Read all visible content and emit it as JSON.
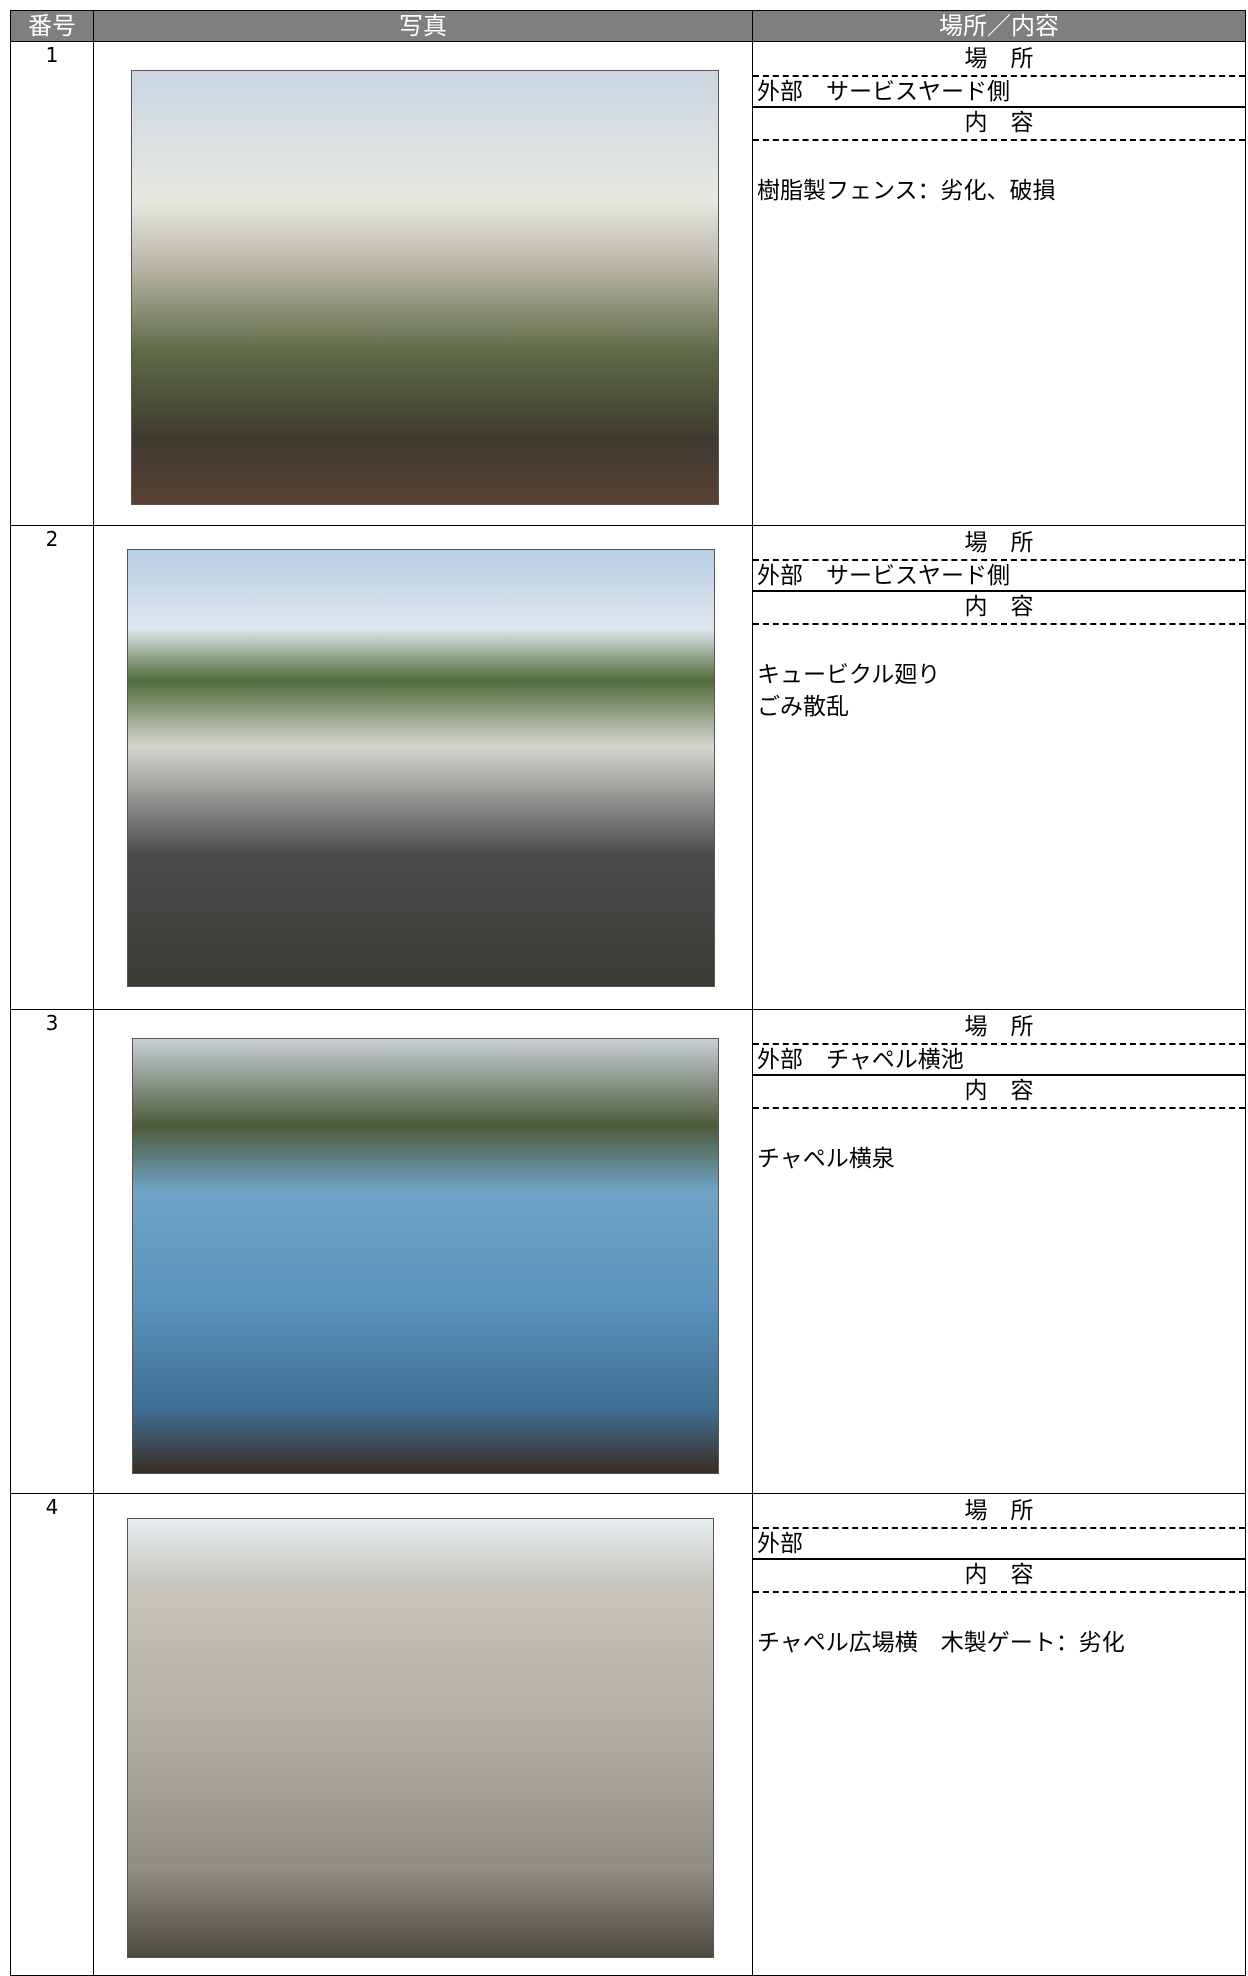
{
  "header": {
    "number": "番号",
    "photo": "写真",
    "location_content": "場所／内容"
  },
  "rows": [
    {
      "number": "1",
      "location_label": "場　所",
      "location": "外部　サービスヤード側",
      "content_label": "内　容",
      "content": "樹脂製フェンス：劣化、破損"
    },
    {
      "number": "2",
      "location_label": "場　所",
      "location": "外部　サービスヤード側",
      "content_label": "内　容",
      "content": "キュービクル廻り\nごみ散乱"
    },
    {
      "number": "3",
      "location_label": "場　所",
      "location": "外部　チャペル横池",
      "content_label": "内　容",
      "content": "チャペル横泉"
    },
    {
      "number": "4",
      "location_label": "場　所",
      "location": "外部",
      "content_label": "内　容",
      "content": "チャペル広場横　木製ゲート：劣化"
    }
  ]
}
